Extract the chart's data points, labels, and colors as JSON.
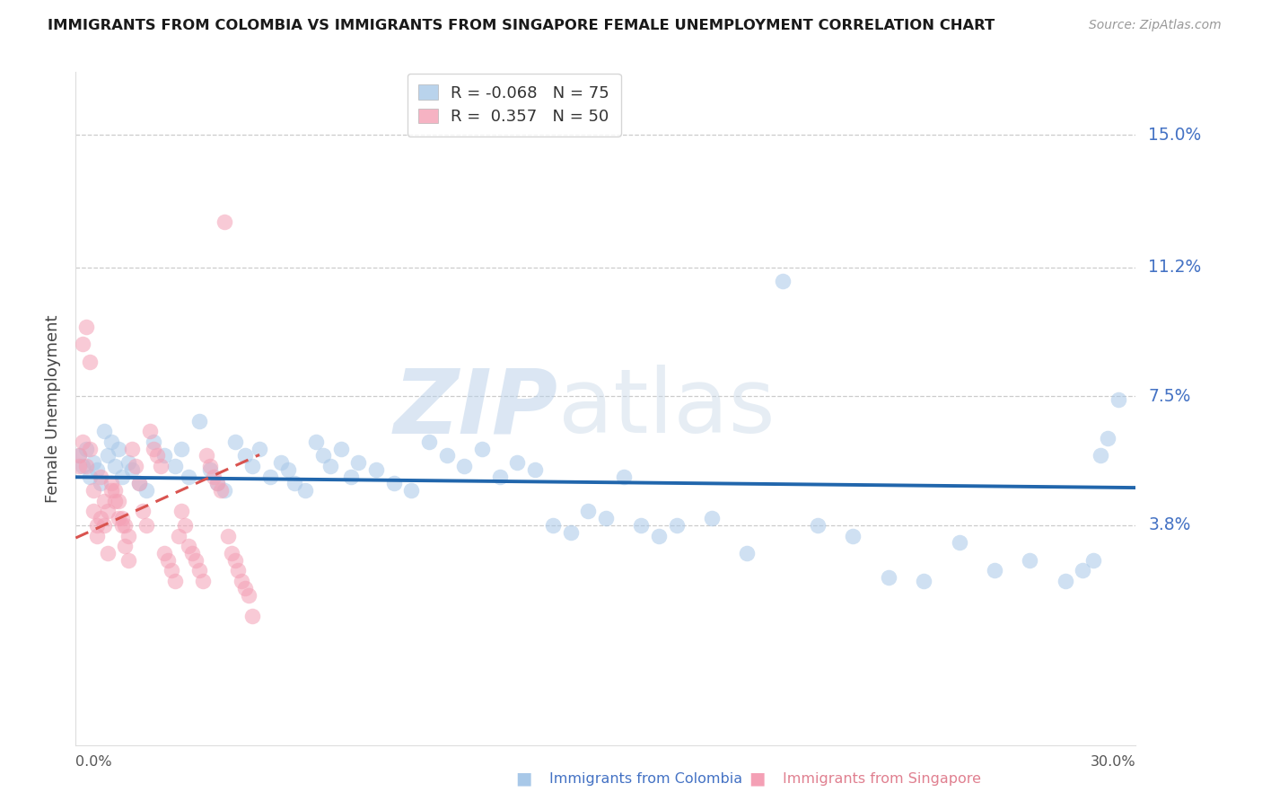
{
  "title": "IMMIGRANTS FROM COLOMBIA VS IMMIGRANTS FROM SINGAPORE FEMALE UNEMPLOYMENT CORRELATION CHART",
  "source": "Source: ZipAtlas.com",
  "ylabel": "Female Unemployment",
  "ytick_labels": [
    "3.8%",
    "7.5%",
    "11.2%",
    "15.0%"
  ],
  "ytick_values": [
    0.038,
    0.075,
    0.112,
    0.15
  ],
  "xtick_labels": [
    "0.0%",
    "30.0%"
  ],
  "xlim": [
    0.0,
    0.3
  ],
  "ylim": [
    -0.025,
    0.168
  ],
  "colombia_color": "#a8c8e8",
  "singapore_color": "#f4a0b5",
  "colombia_R": -0.068,
  "colombia_N": 75,
  "singapore_R": 0.357,
  "singapore_N": 50,
  "trend_colombia_color": "#2166ac",
  "trend_singapore_color": "#d9534f",
  "watermark_zip": "ZIP",
  "watermark_atlas": "atlas",
  "legend_label_colombia": "Immigrants from Colombia",
  "legend_label_singapore": "Immigrants from Singapore",
  "colombia_points_x": [
    0.001,
    0.002,
    0.003,
    0.004,
    0.005,
    0.006,
    0.007,
    0.008,
    0.009,
    0.01,
    0.011,
    0.012,
    0.013,
    0.015,
    0.016,
    0.018,
    0.02,
    0.022,
    0.025,
    0.028,
    0.03,
    0.032,
    0.035,
    0.038,
    0.04,
    0.042,
    0.045,
    0.048,
    0.05,
    0.052,
    0.055,
    0.058,
    0.06,
    0.062,
    0.065,
    0.068,
    0.07,
    0.072,
    0.075,
    0.078,
    0.08,
    0.085,
    0.09,
    0.095,
    0.1,
    0.105,
    0.11,
    0.115,
    0.12,
    0.125,
    0.13,
    0.135,
    0.14,
    0.145,
    0.15,
    0.155,
    0.16,
    0.165,
    0.17,
    0.18,
    0.19,
    0.2,
    0.21,
    0.22,
    0.23,
    0.24,
    0.25,
    0.26,
    0.27,
    0.28,
    0.285,
    0.288,
    0.29,
    0.292,
    0.295
  ],
  "colombia_points_y": [
    0.058,
    0.055,
    0.06,
    0.052,
    0.056,
    0.054,
    0.05,
    0.065,
    0.058,
    0.062,
    0.055,
    0.06,
    0.052,
    0.056,
    0.054,
    0.05,
    0.048,
    0.062,
    0.058,
    0.055,
    0.06,
    0.052,
    0.068,
    0.054,
    0.05,
    0.048,
    0.062,
    0.058,
    0.055,
    0.06,
    0.052,
    0.056,
    0.054,
    0.05,
    0.048,
    0.062,
    0.058,
    0.055,
    0.06,
    0.052,
    0.056,
    0.054,
    0.05,
    0.048,
    0.062,
    0.058,
    0.055,
    0.06,
    0.052,
    0.056,
    0.054,
    0.038,
    0.036,
    0.042,
    0.04,
    0.052,
    0.038,
    0.035,
    0.038,
    0.04,
    0.03,
    0.108,
    0.038,
    0.035,
    0.023,
    0.022,
    0.033,
    0.025,
    0.028,
    0.022,
    0.025,
    0.028,
    0.058,
    0.063,
    0.074
  ],
  "singapore_points_x": [
    0.001,
    0.002,
    0.003,
    0.004,
    0.005,
    0.006,
    0.007,
    0.008,
    0.009,
    0.01,
    0.011,
    0.012,
    0.013,
    0.014,
    0.015,
    0.016,
    0.017,
    0.018,
    0.019,
    0.02,
    0.021,
    0.022,
    0.023,
    0.024,
    0.025,
    0.026,
    0.027,
    0.028,
    0.029,
    0.03,
    0.031,
    0.032,
    0.033,
    0.034,
    0.035,
    0.036,
    0.037,
    0.038,
    0.039,
    0.04,
    0.041,
    0.042,
    0.043,
    0.044,
    0.045,
    0.046,
    0.047,
    0.048,
    0.049,
    0.05
  ],
  "singapore_points_y": [
    0.058,
    0.062,
    0.055,
    0.06,
    0.048,
    0.038,
    0.052,
    0.045,
    0.042,
    0.05,
    0.048,
    0.045,
    0.04,
    0.038,
    0.035,
    0.06,
    0.055,
    0.05,
    0.042,
    0.038,
    0.065,
    0.06,
    0.058,
    0.055,
    0.03,
    0.028,
    0.025,
    0.022,
    0.035,
    0.042,
    0.038,
    0.032,
    0.03,
    0.028,
    0.025,
    0.022,
    0.058,
    0.055,
    0.052,
    0.05,
    0.048,
    0.125,
    0.035,
    0.03,
    0.028,
    0.025,
    0.022,
    0.02,
    0.018,
    0.012
  ],
  "singapore_extra_x": [
    0.001,
    0.002,
    0.003,
    0.004,
    0.005,
    0.006,
    0.007,
    0.008,
    0.009,
    0.01,
    0.011,
    0.012,
    0.013,
    0.014,
    0.015
  ],
  "singapore_extra_y": [
    0.055,
    0.09,
    0.095,
    0.085,
    0.042,
    0.035,
    0.04,
    0.038,
    0.03,
    0.048,
    0.045,
    0.04,
    0.038,
    0.032,
    0.028
  ]
}
